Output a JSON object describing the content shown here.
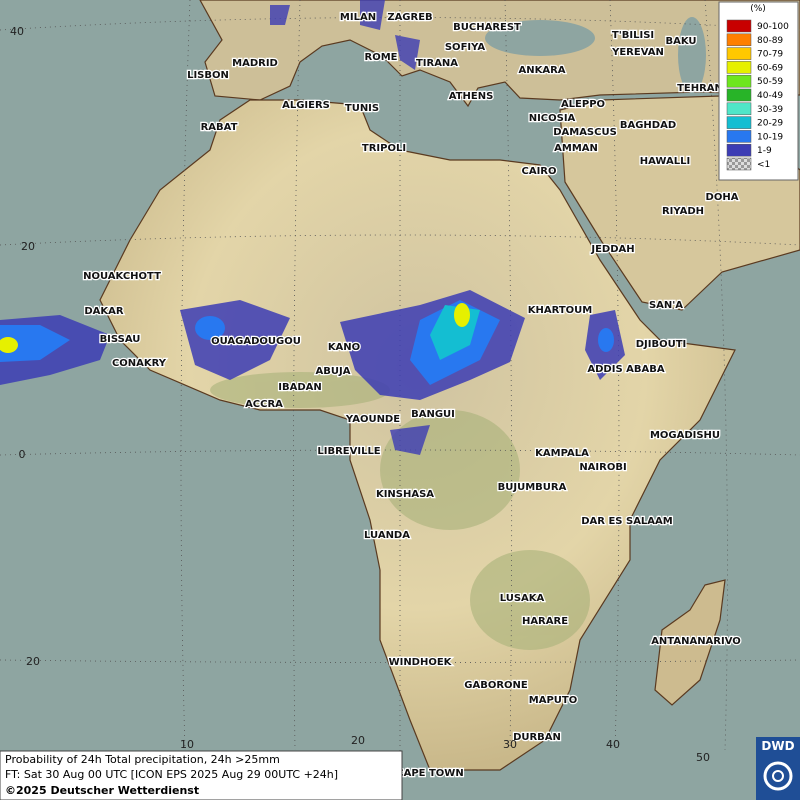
{
  "map": {
    "cities": [
      "MILAN",
      "ZAGREB",
      "BUCHAREST",
      "T'BILISI",
      "BAKU",
      "ROME",
      "SOFIYA",
      "YEREVAN",
      "MADRID",
      "TIRANA",
      "ANKARA",
      "LISBON",
      "ATHENS",
      "TEHRAN",
      "ALGIERS",
      "TUNIS",
      "ALEPPO",
      "RABAT",
      "NICOSIA",
      "BAGHDAD",
      "DAMASCUS",
      "AMMAN",
      "TRIPOLI",
      "HAWALLI",
      "CAIRO",
      "DOHA",
      "RIYADH",
      "JEDDAH",
      "NOUAKCHOTT",
      "SAN'A",
      "DAKAR",
      "KHARTOUM",
      "BISSAU",
      "OUAGADOUGOU",
      "KANO",
      "DJIBOUTI",
      "CONAKRY",
      "ABUJA",
      "ADDIS ABABA",
      "IBADAN",
      "ACCRA",
      "YAOUNDE",
      "BANGUI",
      "MOGADISHU",
      "LIBREVILLE",
      "KAMPALA",
      "NAIROBI",
      "KINSHASA",
      "BUJUMBURA",
      "DAR ES SALAAM",
      "LUANDA",
      "LUSAKA",
      "HARARE",
      "ANTANANARIVO",
      "WINDHOEK",
      "GABORONE",
      "MAPUTO",
      "DURBAN",
      "CAPE TOWN"
    ],
    "lat_labels": [
      "40",
      "20",
      "0",
      "20"
    ],
    "lon_labels": [
      "10",
      "20",
      "30",
      "40",
      "50"
    ]
  },
  "legend": {
    "title": "(%)",
    "entries": [
      {
        "label": "90-100",
        "color": "#c80000"
      },
      {
        "label": "80-89",
        "color": "#ff7f00"
      },
      {
        "label": "70-79",
        "color": "#ffc800"
      },
      {
        "label": "60-69",
        "color": "#e6f000"
      },
      {
        "label": "50-59",
        "color": "#6ee61e"
      },
      {
        "label": "40-49",
        "color": "#28b428"
      },
      {
        "label": "30-39",
        "color": "#50e6c8"
      },
      {
        "label": "20-29",
        "color": "#14bed2"
      },
      {
        "label": "10-19",
        "color": "#2878f0"
      },
      {
        "label": "1-9",
        "color": "#3c3cb4"
      },
      {
        "label": "<1",
        "color": "#bbbbbb"
      }
    ]
  },
  "caption": {
    "line1": "Probability of 24h Total precipitation, 24h >25mm",
    "line2": "FT: Sat 30 Aug 00 UTC [ICON EPS 2025 Aug 29 00UTC +24h]",
    "line3": "©2025 Deutscher Wetterdienst"
  },
  "logo": "DWD"
}
